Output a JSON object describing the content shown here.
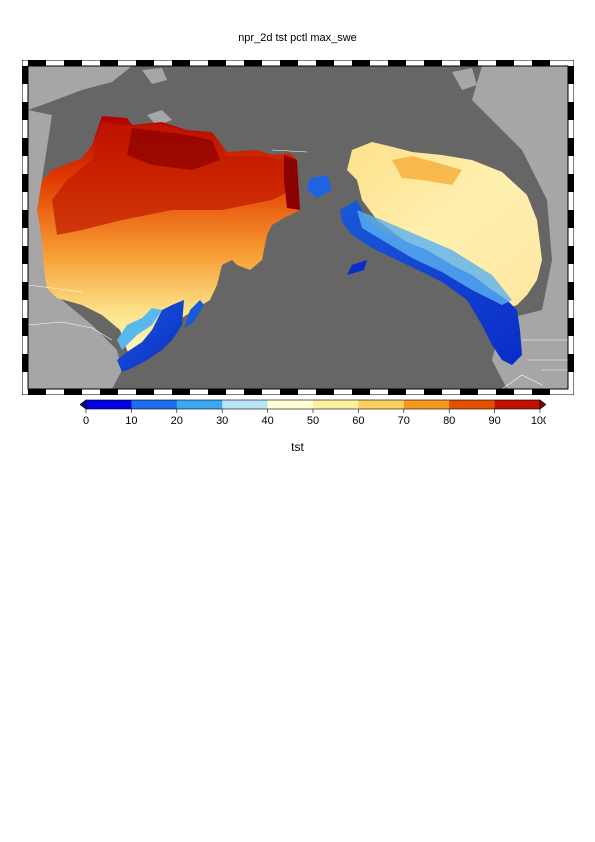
{
  "title": "npr_2d tst pctl max_swe",
  "colorbar": {
    "label": "tst",
    "ticks": [
      "0",
      "10",
      "20",
      "30",
      "40",
      "50",
      "60",
      "70",
      "80",
      "90",
      "100"
    ],
    "min": 0,
    "max": 100,
    "colors": [
      "#00007f",
      "#0000e0",
      "#1e6cf0",
      "#3aa8f0",
      "#b8e4f5",
      "#ffffd8",
      "#fff0a0",
      "#fbd060",
      "#f59a20",
      "#e45000",
      "#c01000",
      "#8b0000"
    ]
  },
  "map": {
    "ocean_color": "#666666",
    "land_color": "#a6a6a6",
    "border_color": "#ffffff"
  }
}
